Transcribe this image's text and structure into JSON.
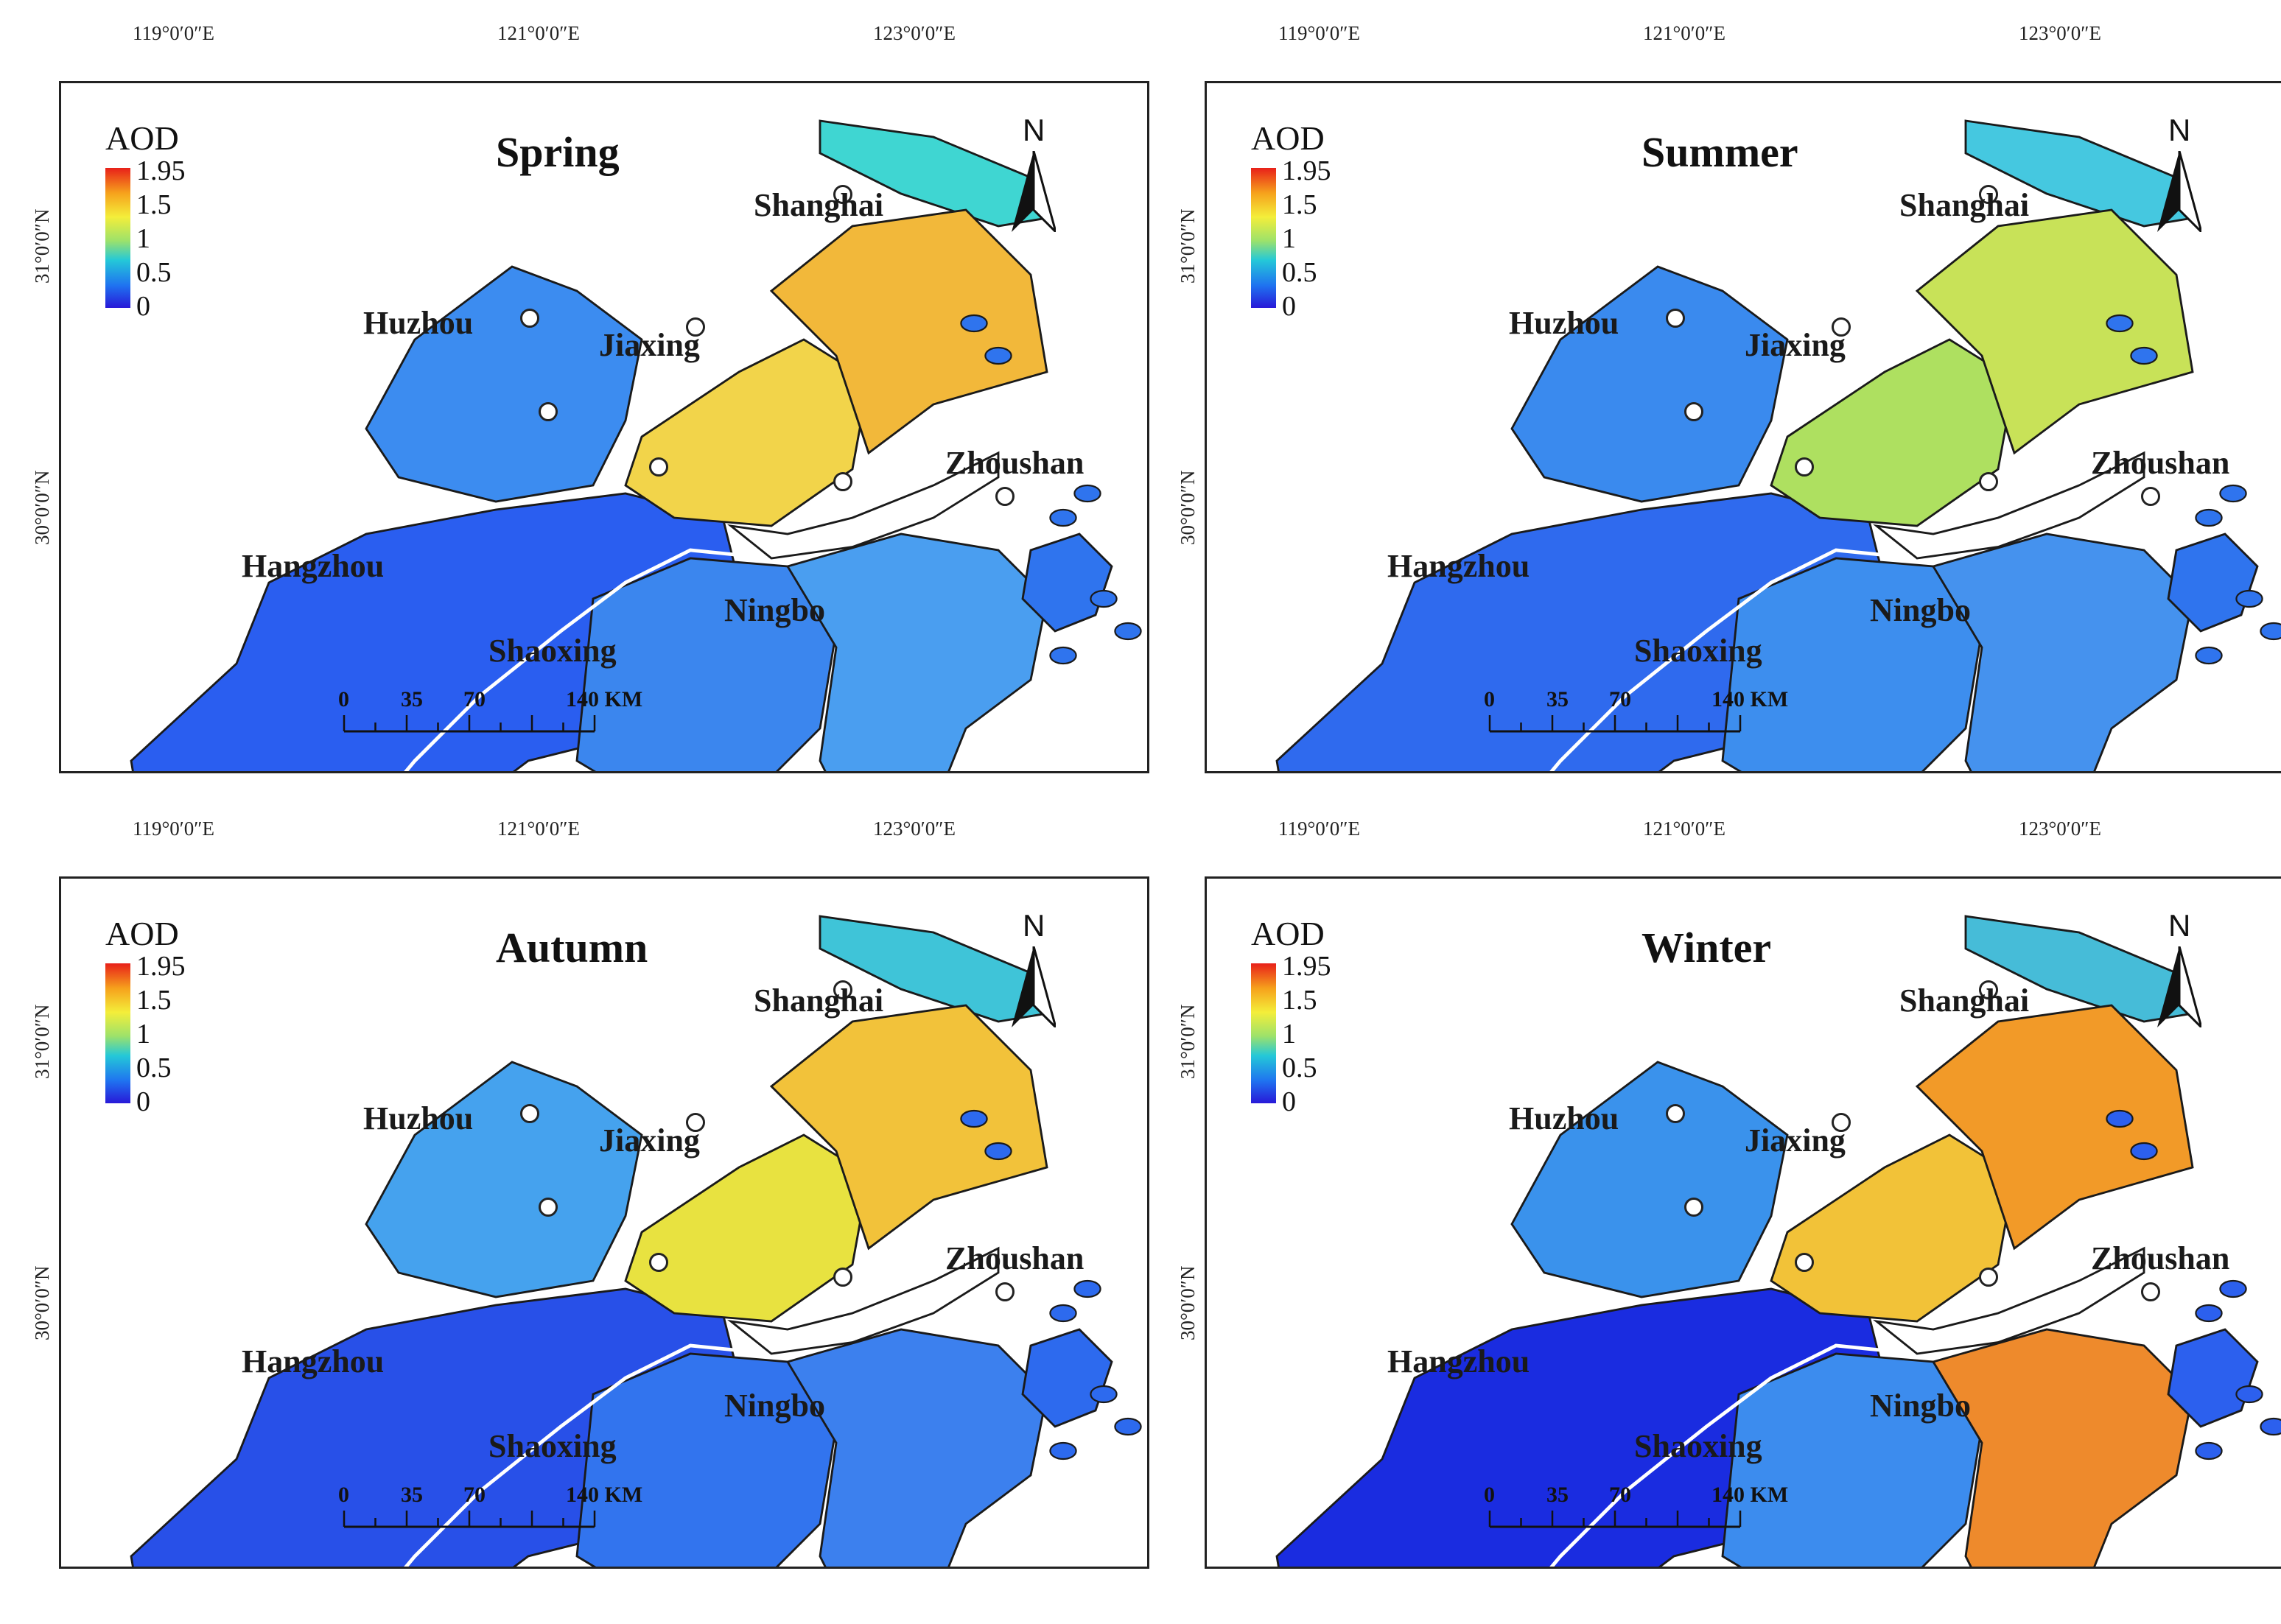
{
  "axes": {
    "lon_ticks": [
      "119°0′0″E",
      "121°0′0″E",
      "123°0′0″E"
    ],
    "lat_ticks": [
      "31°0′0″N",
      "30°0′0″N"
    ]
  },
  "legend": {
    "title": "AOD",
    "labels": [
      "1.95",
      "1.5",
      "1",
      "0.5",
      "0"
    ],
    "colors": [
      "#e8201a",
      "#f6a21c",
      "#f4ee3a",
      "#9de26a",
      "#24c8d8",
      "#1f73f0",
      "#2818d8"
    ]
  },
  "north_label": "N",
  "scale": {
    "labels": [
      "0",
      "35",
      "70"
    ],
    "end_label": "140 KM"
  },
  "cities": [
    "Shanghai",
    "Huzhou",
    "Jiaxing",
    "Zhoushan",
    "Hangzhou",
    "Shaoxing",
    "Ningbo"
  ],
  "panels": [
    {
      "season": "Spring",
      "colors": {
        "hangzhou": "#2a5ef0",
        "huzhou": "#3c8cf0",
        "jiaxing": "#f2d44a",
        "shanghai": "#f2b83a",
        "shaoxing": "#3b86ee",
        "ningbo": "#4a9ef0",
        "zhoushan": "#2f74ee",
        "chongming": "#3fd6d2"
      }
    },
    {
      "season": "Summer",
      "colors": {
        "hangzhou": "#2f6aee",
        "huzhou": "#3a8aee",
        "jiaxing": "#aee060",
        "shanghai": "#c8e258",
        "shaoxing": "#3d8eee",
        "ningbo": "#4592ee",
        "zhoushan": "#2f74ee",
        "chongming": "#45c8e0"
      }
    },
    {
      "season": "Autumn",
      "colors": {
        "hangzhou": "#2850e8",
        "huzhou": "#45a2ee",
        "jiaxing": "#e8e240",
        "shanghai": "#f2c23a",
        "shaoxing": "#3274ee",
        "ningbo": "#3c80ee",
        "zhoushan": "#2d6aee",
        "chongming": "#3fc4d8"
      }
    },
    {
      "season": "Winter",
      "colors": {
        "hangzhou": "#1a2ce0",
        "huzhou": "#3a92ec",
        "jiaxing": "#f2c238",
        "shanghai": "#f29a28",
        "shaoxing": "#3c8cee",
        "ningbo": "#ee8a2c",
        "zhoushan": "#2c60ee",
        "chongming": "#46bcd8"
      }
    }
  ]
}
